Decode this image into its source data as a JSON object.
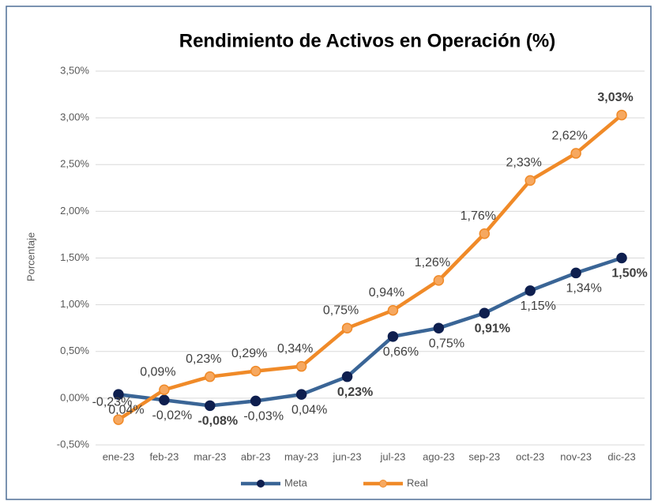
{
  "chart_data": {
    "type": "line",
    "title": "Rendimiento de Activos en Operación (%)",
    "y_label": "Porcentaje",
    "categories": [
      "ene-23",
      "feb-23",
      "mar-23",
      "abr-23",
      "may-23",
      "jun-23",
      "jul-23",
      "ago-23",
      "sep-23",
      "oct-23",
      "nov-23",
      "dic-23"
    ],
    "series": [
      {
        "name": "Meta",
        "color": "#3a6596",
        "marker_color": "#0e1f4f",
        "values": [
          0.04,
          -0.02,
          -0.08,
          -0.03,
          0.04,
          0.23,
          0.66,
          0.75,
          0.91,
          1.15,
          1.34,
          1.5
        ],
        "value_labels": [
          "0,04%",
          "-0,02%",
          "-0,08%",
          "-0,03%",
          "0,04%",
          "0,23%",
          "0,66%",
          "0,75%",
          "0,91%",
          "1,15%",
          "1,34%",
          "1,50%"
        ],
        "bold_points": [
          2,
          5,
          8,
          11
        ]
      },
      {
        "name": "Real",
        "color": "#f08a28",
        "marker_color": "#f6a860",
        "values": [
          -0.23,
          0.09,
          0.23,
          0.29,
          0.34,
          0.75,
          0.94,
          1.26,
          1.76,
          2.33,
          2.62,
          3.03
        ],
        "value_labels": [
          "-0,23%",
          "0,09%",
          "0,23%",
          "0,29%",
          "0,34%",
          "0,75%",
          "0,94%",
          "1,26%",
          "1,76%",
          "2,33%",
          "2,62%",
          "3,03%"
        ],
        "bold_points": [
          11
        ]
      }
    ],
    "ylim": [
      -0.5,
      3.5
    ],
    "yticks": [
      {
        "value": -0.5,
        "label": "-0,50%"
      },
      {
        "value": 0,
        "label": "0,00%"
      },
      {
        "value": 0.5,
        "label": "0,50%"
      },
      {
        "value": 1,
        "label": "1,00%"
      },
      {
        "value": 1.5,
        "label": "1,50%"
      },
      {
        "value": 2,
        "label": "2,00%"
      },
      {
        "value": 2.5,
        "label": "2,50%"
      },
      {
        "value": 3,
        "label": "3,00%"
      },
      {
        "value": 3.5,
        "label": "3,50%"
      }
    ],
    "grid": true,
    "legend": "bottom"
  }
}
